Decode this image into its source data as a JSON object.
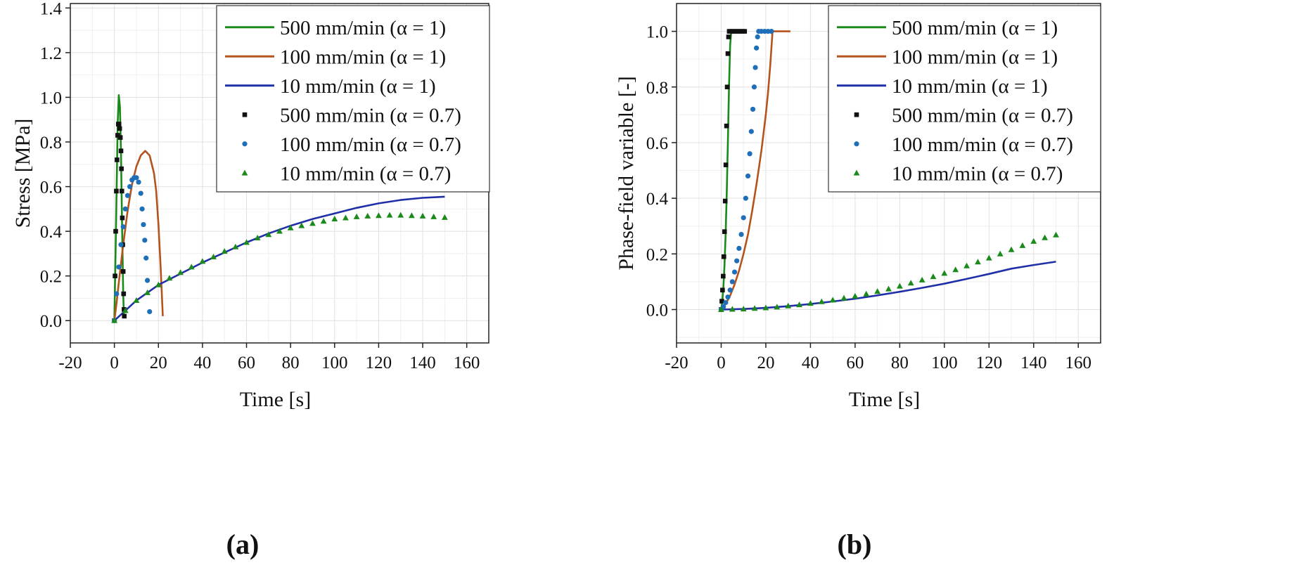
{
  "chart_data": [
    {
      "type": "line",
      "panel_label": "(a)",
      "title": "",
      "xlabel": "Time [s]",
      "ylabel": "Stress [MPa]",
      "xlim": [
        -20,
        170
      ],
      "ylim": [
        -0.1,
        1.42
      ],
      "xticks": [
        -20,
        0,
        20,
        40,
        60,
        80,
        100,
        120,
        140,
        160
      ],
      "yticks": [
        0.0,
        0.2,
        0.4,
        0.6,
        0.8,
        1.0,
        1.2,
        1.4
      ],
      "xtick_labels": [
        "-20",
        "0",
        "20",
        "40",
        "60",
        "80",
        "100",
        "120",
        "140",
        "160"
      ],
      "ytick_labels": [
        "0.0",
        "0.2",
        "0.4",
        "0.6",
        "0.8",
        "1.0",
        "1.2",
        "1.4"
      ],
      "grid": true,
      "legend_position": "top-right",
      "series": [
        {
          "name": "500 mm/min (α = 1)",
          "style": "line",
          "color": "#1a8a1a",
          "x": [
            0,
            0.5,
            1.0,
            1.5,
            2.0,
            2.5,
            3.0,
            3.5,
            4.0,
            4.3
          ],
          "y": [
            0,
            0.28,
            0.58,
            0.88,
            1.01,
            0.96,
            0.76,
            0.42,
            0.12,
            0.03
          ]
        },
        {
          "name": "100 mm/min (α = 1)",
          "style": "line",
          "color": "#b5531c",
          "x": [
            0,
            1,
            2,
            4,
            6,
            8,
            10,
            12,
            14,
            16,
            18,
            19,
            20,
            21,
            22
          ],
          "y": [
            0,
            0.08,
            0.17,
            0.34,
            0.49,
            0.61,
            0.69,
            0.74,
            0.76,
            0.74,
            0.66,
            0.58,
            0.43,
            0.24,
            0.02
          ]
        },
        {
          "name": "10 mm/min (α = 1)",
          "style": "line",
          "color": "#1f2fa8",
          "x": [
            0,
            5,
            10,
            20,
            30,
            40,
            50,
            60,
            70,
            80,
            90,
            100,
            110,
            120,
            130,
            140,
            150
          ],
          "y": [
            0,
            0.045,
            0.09,
            0.16,
            0.21,
            0.26,
            0.305,
            0.35,
            0.39,
            0.425,
            0.455,
            0.48,
            0.505,
            0.525,
            0.54,
            0.55,
            0.555
          ]
        },
        {
          "name": "500 mm/min (α = 0.7)",
          "style": "square",
          "color": "#111111",
          "x": [
            0,
            0.3,
            0.6,
            0.9,
            1.2,
            1.5,
            1.8,
            2.1,
            2.4,
            2.7,
            3.0,
            3.2,
            3.4,
            3.6,
            3.8,
            4.0,
            4.2,
            4.4,
            4.5
          ],
          "y": [
            0,
            0.2,
            0.4,
            0.58,
            0.72,
            0.83,
            0.88,
            0.88,
            0.86,
            0.82,
            0.76,
            0.68,
            0.58,
            0.46,
            0.34,
            0.22,
            0.12,
            0.05,
            0.02
          ]
        },
        {
          "name": "100 mm/min (α = 0.7)",
          "style": "circle",
          "color": "#1f6fb8",
          "x": [
            0,
            1,
            2,
            3,
            4,
            5,
            6,
            7,
            8,
            9,
            10,
            11,
            12,
            12.6,
            13.2,
            13.8,
            14.4,
            15,
            16
          ],
          "y": [
            0,
            0.12,
            0.24,
            0.34,
            0.42,
            0.5,
            0.56,
            0.6,
            0.63,
            0.64,
            0.64,
            0.62,
            0.57,
            0.5,
            0.43,
            0.36,
            0.28,
            0.18,
            0.04
          ]
        },
        {
          "name": "10 mm/min (α = 0.7)",
          "style": "triangle",
          "color": "#1a8a1a",
          "x": [
            0,
            5,
            10,
            15,
            20,
            25,
            30,
            35,
            40,
            45,
            50,
            55,
            60,
            65,
            70,
            75,
            80,
            85,
            90,
            95,
            100,
            105,
            110,
            115,
            120,
            125,
            130,
            135,
            140,
            145,
            150
          ],
          "y": [
            0,
            0.045,
            0.09,
            0.125,
            0.16,
            0.19,
            0.215,
            0.24,
            0.265,
            0.285,
            0.31,
            0.33,
            0.35,
            0.37,
            0.385,
            0.4,
            0.415,
            0.425,
            0.435,
            0.445,
            0.455,
            0.46,
            0.465,
            0.468,
            0.47,
            0.472,
            0.472,
            0.47,
            0.468,
            0.465,
            0.462
          ]
        }
      ]
    },
    {
      "type": "line",
      "panel_label": "(b)",
      "title": "",
      "xlabel": "Time [s]",
      "ylabel": "Phase-field variable [-]",
      "xlim": [
        -20,
        170
      ],
      "ylim": [
        -0.12,
        1.1
      ],
      "xticks": [
        -20,
        0,
        20,
        40,
        60,
        80,
        100,
        120,
        140,
        160
      ],
      "yticks": [
        0.0,
        0.2,
        0.4,
        0.6,
        0.8,
        1.0
      ],
      "xtick_labels": [
        "-20",
        "0",
        "20",
        "40",
        "60",
        "80",
        "100",
        "120",
        "140",
        "160"
      ],
      "ytick_labels": [
        "0.0",
        "0.2",
        "0.4",
        "0.6",
        "0.8",
        "1.0"
      ],
      "grid": true,
      "legend_position": "top-right",
      "series": [
        {
          "name": "500 mm/min (α = 1)",
          "style": "line",
          "color": "#1a8a1a",
          "x": [
            0,
            0.5,
            1.0,
            1.5,
            2.0,
            2.5,
            3.0,
            3.5,
            4.0,
            4.5,
            5,
            6,
            8
          ],
          "y": [
            0,
            0.03,
            0.08,
            0.16,
            0.27,
            0.42,
            0.6,
            0.8,
            0.95,
            1.0,
            1.0,
            1.0,
            1.0
          ]
        },
        {
          "name": "100 mm/min (α = 1)",
          "style": "line",
          "color": "#b5531c",
          "x": [
            0,
            2,
            4,
            6,
            8,
            10,
            12,
            14,
            16,
            18,
            20,
            21,
            22,
            22.5,
            23,
            24,
            27,
            31
          ],
          "y": [
            0,
            0.02,
            0.05,
            0.09,
            0.14,
            0.2,
            0.27,
            0.36,
            0.46,
            0.57,
            0.7,
            0.78,
            0.88,
            0.94,
            1.0,
            1.0,
            1.0,
            1.0
          ]
        },
        {
          "name": "10 mm/min (α = 1)",
          "style": "line",
          "color": "#1f2fa8",
          "x": [
            0,
            10,
            20,
            30,
            40,
            50,
            60,
            70,
            80,
            90,
            100,
            110,
            120,
            130,
            140,
            150
          ],
          "y": [
            0,
            0.002,
            0.006,
            0.012,
            0.02,
            0.029,
            0.039,
            0.051,
            0.064,
            0.078,
            0.093,
            0.11,
            0.128,
            0.147,
            0.16,
            0.172
          ]
        },
        {
          "name": "500 mm/min (α = 0.7)",
          "style": "square",
          "color": "#111111",
          "x": [
            0,
            0.3,
            0.6,
            0.9,
            1.2,
            1.5,
            1.8,
            2.1,
            2.4,
            2.7,
            3.0,
            3.3,
            3.6,
            4.5,
            5.5,
            6.5,
            7.5,
            8.5,
            9.5,
            10.5
          ],
          "y": [
            0,
            0.03,
            0.07,
            0.12,
            0.19,
            0.28,
            0.39,
            0.52,
            0.66,
            0.8,
            0.92,
            0.98,
            1.0,
            1.0,
            1.0,
            1.0,
            1.0,
            1.0,
            1.0,
            1.0
          ]
        },
        {
          "name": "100 mm/min (α = 0.7)",
          "style": "circle",
          "color": "#1f6fb8",
          "x": [
            0,
            1,
            2,
            3,
            4,
            5,
            6,
            7,
            8,
            9,
            10,
            11,
            12,
            12.8,
            13.5,
            14.2,
            14.8,
            15.3,
            15.8,
            16.3,
            16.8,
            18,
            19.5,
            21,
            22.5
          ],
          "y": [
            0,
            0.01,
            0.025,
            0.045,
            0.07,
            0.1,
            0.135,
            0.175,
            0.22,
            0.27,
            0.33,
            0.4,
            0.48,
            0.56,
            0.64,
            0.72,
            0.8,
            0.87,
            0.94,
            0.98,
            1.0,
            1.0,
            1.0,
            1.0,
            1.0
          ]
        },
        {
          "name": "10 mm/min (α = 0.7)",
          "style": "triangle",
          "color": "#1a8a1a",
          "x": [
            0,
            5,
            10,
            15,
            20,
            25,
            30,
            35,
            40,
            45,
            50,
            55,
            60,
            65,
            70,
            75,
            80,
            85,
            90,
            95,
            100,
            105,
            110,
            115,
            120,
            125,
            130,
            135,
            140,
            145,
            150
          ],
          "y": [
            0,
            0.001,
            0.002,
            0.004,
            0.006,
            0.009,
            0.013,
            0.017,
            0.022,
            0.028,
            0.034,
            0.041,
            0.048,
            0.056,
            0.065,
            0.074,
            0.084,
            0.095,
            0.106,
            0.118,
            0.13,
            0.143,
            0.157,
            0.171,
            0.185,
            0.2,
            0.215,
            0.23,
            0.245,
            0.258,
            0.268
          ]
        }
      ]
    }
  ]
}
